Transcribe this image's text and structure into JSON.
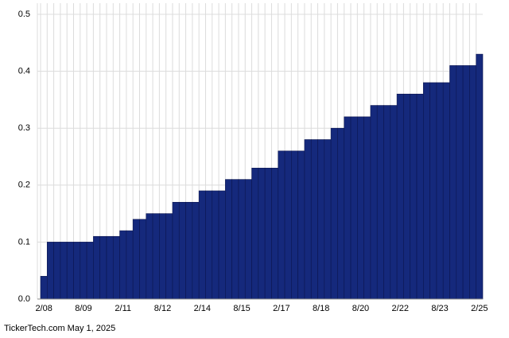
{
  "chart_data": {
    "type": "bar",
    "categories": [
      "2/08",
      null,
      null,
      null,
      null,
      null,
      "8/09",
      null,
      null,
      null,
      null,
      null,
      "2/11",
      null,
      null,
      null,
      null,
      null,
      "8/12",
      null,
      null,
      null,
      null,
      null,
      "2/14",
      null,
      null,
      null,
      null,
      null,
      "8/15",
      null,
      null,
      null,
      null,
      null,
      "2/17",
      null,
      null,
      null,
      null,
      null,
      "8/18",
      null,
      null,
      null,
      null,
      null,
      "8/20",
      null,
      null,
      null,
      null,
      null,
      "2/22",
      null,
      null,
      null,
      null,
      null,
      "8/23",
      null,
      null,
      null,
      null,
      null,
      "2/25"
    ],
    "values": [
      0.04,
      0.1,
      0.1,
      0.1,
      0.1,
      0.1,
      0.1,
      0.1,
      0.11,
      0.11,
      0.11,
      0.11,
      0.12,
      0.12,
      0.14,
      0.14,
      0.15,
      0.15,
      0.15,
      0.15,
      0.17,
      0.17,
      0.17,
      0.17,
      0.19,
      0.19,
      0.19,
      0.19,
      0.21,
      0.21,
      0.21,
      0.21,
      0.23,
      0.23,
      0.23,
      0.23,
      0.26,
      0.26,
      0.26,
      0.26,
      0.28,
      0.28,
      0.28,
      0.28,
      0.3,
      0.3,
      0.32,
      0.32,
      0.32,
      0.32,
      0.34,
      0.34,
      0.34,
      0.34,
      0.36,
      0.36,
      0.36,
      0.36,
      0.38,
      0.38,
      0.38,
      0.38,
      0.41,
      0.41,
      0.41,
      0.41,
      0.43
    ],
    "color": "#15297c",
    "ylim": [
      0,
      0.5
    ],
    "yticks": [
      {
        "value": 0,
        "label": "0.0"
      },
      0.1,
      0.2,
      0.3,
      0.4,
      0.5
    ],
    "grid": true,
    "footer": "TickerTech.com May 1, 2025"
  }
}
